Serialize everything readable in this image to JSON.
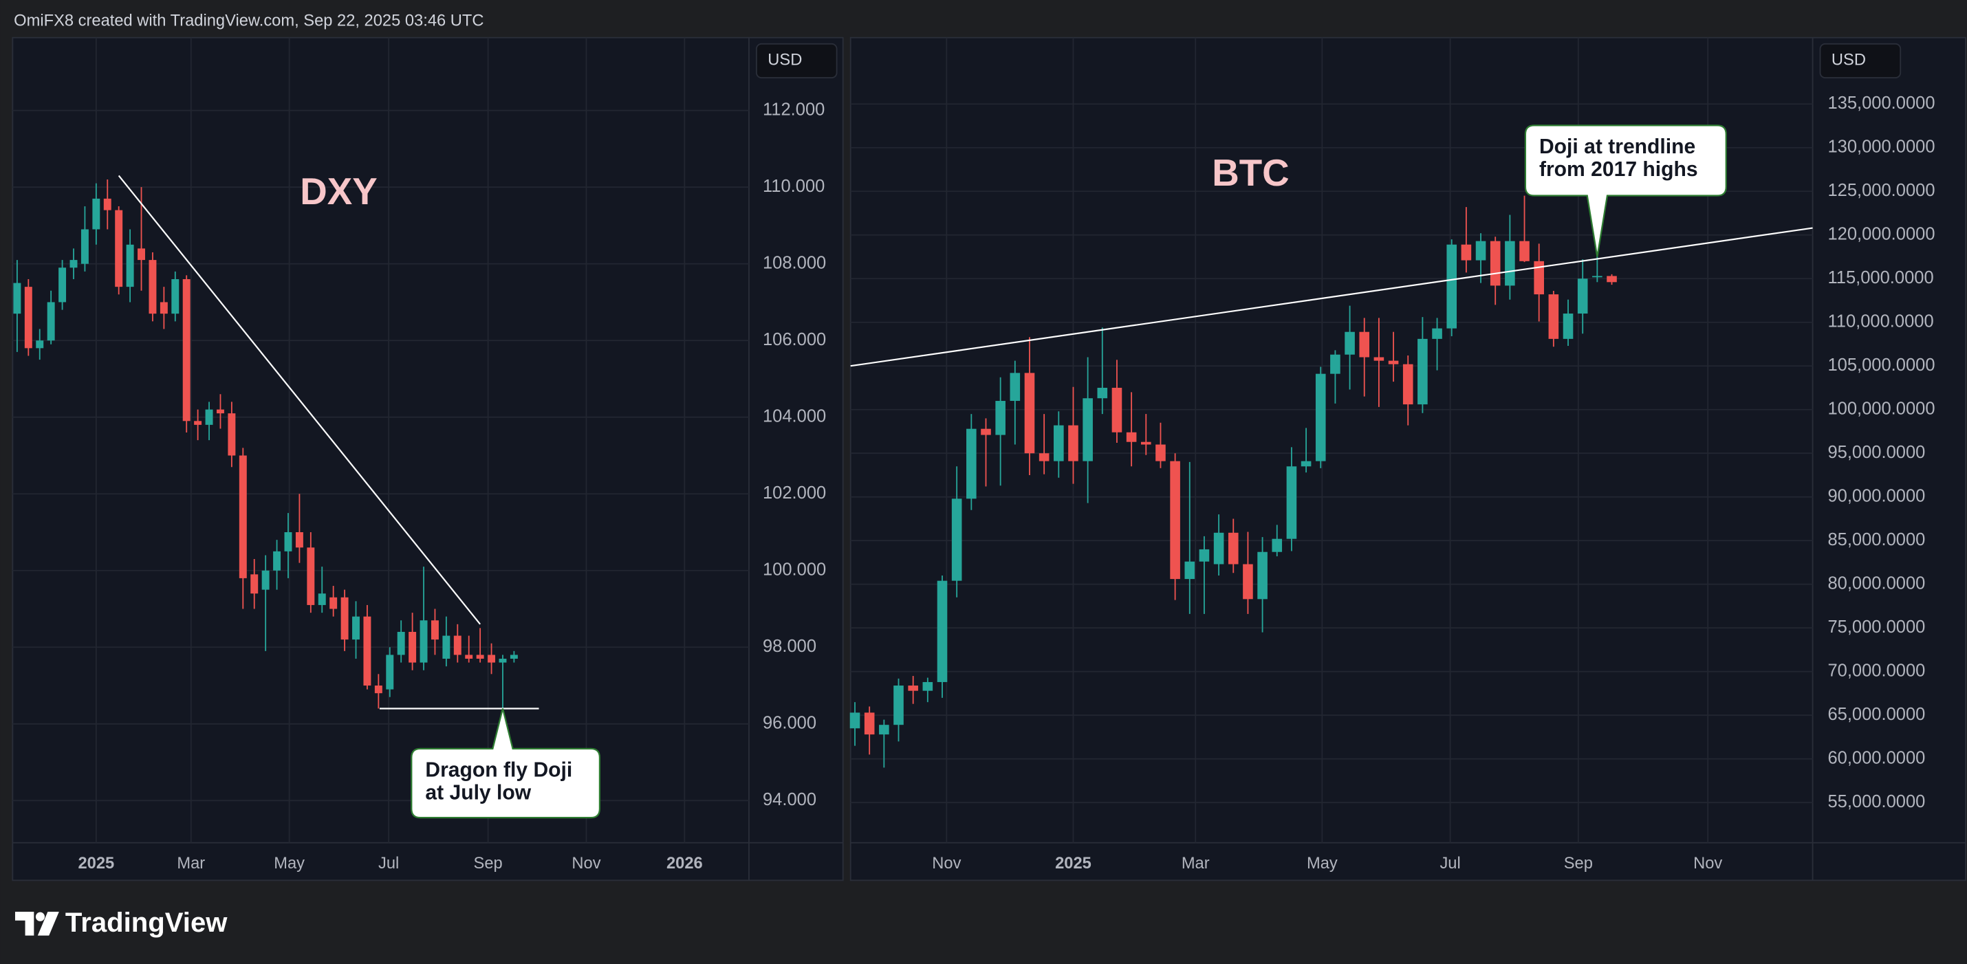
{
  "header": {
    "text": "OmiFX8 created with TradingView.com, Sep 22, 2025 03:46 UTC"
  },
  "footer": {
    "brand": "TradingView"
  },
  "chart_data": [
    {
      "type": "candlestick",
      "title": "DXY",
      "currency": "USD",
      "up_color": "#26a69a",
      "down_color": "#ef5350",
      "line_color": "#ffffff",
      "grid": true,
      "x": [
        -7,
        -6,
        -5,
        -4,
        -3,
        -2,
        -1,
        0,
        1,
        2,
        3,
        4,
        5,
        6,
        7,
        8,
        9,
        10,
        11,
        12,
        13,
        14,
        15,
        16,
        17,
        18,
        19,
        20,
        21,
        22,
        23,
        24,
        25,
        26,
        27,
        28,
        29,
        30,
        31,
        32,
        33,
        34,
        35,
        36,
        37
      ],
      "open": [
        106.7,
        107.4,
        105.8,
        106.0,
        107.0,
        107.9,
        108.0,
        108.9,
        109.7,
        109.4,
        107.4,
        108.4,
        108.1,
        107.0,
        106.7,
        107.6,
        103.9,
        103.8,
        104.2,
        104.1,
        103.0,
        99.9,
        99.5,
        100.0,
        100.5,
        101.0,
        100.6,
        99.1,
        99.3,
        99.3,
        98.2,
        98.8,
        97.0,
        96.9,
        97.8,
        98.4,
        97.6,
        98.7,
        97.7,
        98.3,
        97.8,
        97.8,
        97.8,
        97.6,
        97.7
      ],
      "high": [
        108.1,
        107.6,
        106.3,
        107.3,
        108.1,
        108.4,
        109.5,
        110.1,
        110.2,
        109.5,
        108.9,
        110.0,
        108.3,
        107.4,
        107.8,
        107.7,
        104.2,
        104.4,
        104.6,
        104.4,
        103.2,
        100.3,
        100.4,
        100.8,
        101.5,
        102.0,
        101.0,
        100.1,
        99.6,
        99.5,
        99.2,
        99.1,
        97.3,
        98.0,
        98.7,
        98.9,
        100.1,
        99.0,
        98.8,
        98.6,
        98.3,
        98.5,
        98.1,
        97.8,
        97.9
      ],
      "low": [
        105.7,
        105.6,
        105.5,
        105.9,
        106.8,
        107.6,
        107.8,
        108.5,
        108.9,
        107.2,
        107.0,
        107.3,
        106.5,
        106.3,
        106.5,
        103.6,
        103.4,
        103.4,
        103.7,
        102.7,
        99.0,
        99.0,
        97.9,
        99.5,
        99.8,
        100.2,
        98.9,
        98.9,
        98.8,
        97.9,
        97.7,
        96.9,
        96.4,
        96.7,
        97.6,
        97.4,
        97.4,
        97.8,
        97.5,
        97.6,
        97.6,
        97.6,
        97.3,
        96.4,
        97.6
      ],
      "close": [
        107.5,
        105.8,
        106.0,
        107.0,
        107.9,
        108.1,
        108.9,
        109.7,
        109.4,
        107.4,
        108.5,
        108.1,
        106.7,
        106.7,
        107.6,
        103.9,
        103.8,
        104.2,
        104.1,
        103.0,
        99.8,
        99.4,
        100.0,
        100.5,
        101.0,
        100.6,
        99.1,
        99.4,
        99.0,
        98.2,
        98.8,
        97.0,
        96.8,
        97.8,
        98.4,
        97.6,
        98.7,
        98.2,
        98.3,
        97.8,
        97.7,
        97.7,
        97.6,
        97.7,
        97.8
      ],
      "xlim": [
        -7.4,
        57.8
      ],
      "ylim": [
        92.9,
        113.9
      ],
      "xticks": [
        {
          "value": 0,
          "label": "2025"
        },
        {
          "value": 8.4,
          "label": "Mar"
        },
        {
          "value": 17.1,
          "label": "May"
        },
        {
          "value": 25.9,
          "label": "Jul"
        },
        {
          "value": 34.7,
          "label": "Sep"
        },
        {
          "value": 43.4,
          "label": "Nov"
        },
        {
          "value": 52.1,
          "label": "2026"
        }
      ],
      "yticks": [
        {
          "value": 94,
          "label": "94.000"
        },
        {
          "value": 96,
          "label": "96.000"
        },
        {
          "value": 98,
          "label": "98.000"
        },
        {
          "value": 100,
          "label": "100.000"
        },
        {
          "value": 102,
          "label": "102.000"
        },
        {
          "value": 104,
          "label": "104.000"
        },
        {
          "value": 106,
          "label": "106.000"
        },
        {
          "value": 108,
          "label": "108.000"
        },
        {
          "value": 110,
          "label": "110.000"
        },
        {
          "value": 112,
          "label": "112.000"
        }
      ],
      "trendlines": [
        {
          "x": [
            2,
            34
          ],
          "y": [
            110.3,
            98.6
          ]
        },
        {
          "x": [
            25.1,
            39.2
          ],
          "y": [
            96.4,
            96.4
          ]
        }
      ],
      "annotation": {
        "text": [
          "Dragon fly Doji",
          "at July low"
        ],
        "x": 36,
        "y": 96.4
      }
    },
    {
      "type": "candlestick",
      "title": "BTC",
      "currency": "USD",
      "up_color": "#26a69a",
      "down_color": "#ef5350",
      "line_color": "#ffffff",
      "grid": true,
      "x": [
        -15,
        -14,
        -13,
        -12,
        -11,
        -10,
        -9,
        -8,
        -7,
        -6,
        -5,
        -4,
        -3,
        -2,
        -1,
        0,
        1,
        2,
        3,
        4,
        5,
        6,
        7,
        8,
        9,
        10,
        11,
        12,
        13,
        14,
        15,
        16,
        17,
        18,
        19,
        20,
        21,
        22,
        23,
        24,
        25,
        26,
        27,
        28,
        29,
        30,
        31,
        32,
        33,
        34,
        35,
        36,
        37
      ],
      "open": [
        63500,
        65300,
        62800,
        63900,
        68400,
        67800,
        68800,
        80400,
        89800,
        97800,
        97100,
        101000,
        104200,
        95000,
        94100,
        98200,
        94100,
        101300,
        102500,
        97400,
        96300,
        96000,
        94100,
        80600,
        82600,
        82300,
        85900,
        82300,
        78300,
        83700,
        85200,
        93500,
        94100,
        104100,
        106300,
        108900,
        106000,
        105600,
        105200,
        100600,
        108100,
        109300,
        118900,
        117100,
        119300,
        114200,
        119300,
        117000,
        113200,
        108100,
        111000,
        115200,
        115300
      ],
      "high": [
        66500,
        66000,
        64500,
        69200,
        69500,
        69300,
        81000,
        93500,
        99500,
        99000,
        103700,
        105600,
        108300,
        99500,
        99800,
        102600,
        106000,
        109400,
        105700,
        102000,
        99500,
        98500,
        95000,
        94000,
        85500,
        88000,
        87500,
        86000,
        85400,
        86800,
        95700,
        97900,
        104900,
        106800,
        111900,
        110500,
        110500,
        108900,
        106200,
        110600,
        110500,
        119500,
        123200,
        120200,
        119800,
        122300,
        124500,
        119000,
        113600,
        112600,
        117200,
        117900,
        115500
      ],
      "low": [
        61500,
        60500,
        59000,
        62000,
        66300,
        66500,
        67000,
        78500,
        88500,
        91200,
        91300,
        96000,
        92500,
        92600,
        92200,
        91500,
        89300,
        99500,
        96200,
        93500,
        94800,
        93300,
        78200,
        76600,
        76600,
        81000,
        81300,
        76600,
        74500,
        83200,
        83800,
        92800,
        93300,
        100700,
        102300,
        101500,
        100300,
        103200,
        98200,
        99600,
        104500,
        108400,
        115700,
        114500,
        112000,
        112600,
        116900,
        110100,
        107200,
        107300,
        108700,
        114600,
        114300
      ],
      "close": [
        65300,
        62800,
        63900,
        68400,
        67800,
        68800,
        80400,
        89800,
        97800,
        97100,
        101000,
        104200,
        95000,
        94100,
        98200,
        94100,
        101300,
        102500,
        97400,
        96300,
        96000,
        94100,
        80600,
        82600,
        84000,
        85900,
        82300,
        78300,
        83700,
        85200,
        93500,
        94100,
        104100,
        106300,
        108900,
        106000,
        105600,
        105200,
        100600,
        108100,
        109300,
        118900,
        117100,
        119300,
        114200,
        119300,
        117000,
        113200,
        108100,
        111000,
        115000,
        115300,
        114600
      ],
      "xlim": [
        -15.3,
        50.8
      ],
      "ylim": [
        50400,
        142600
      ],
      "xticks": [
        {
          "value": -8.7,
          "label": "Nov"
        },
        {
          "value": 0,
          "label": "2025"
        },
        {
          "value": 8.4,
          "label": "Mar"
        },
        {
          "value": 17.1,
          "label": "May"
        },
        {
          "value": 25.9,
          "label": "Jul"
        },
        {
          "value": 34.7,
          "label": "Sep"
        },
        {
          "value": 43.6,
          "label": "Nov"
        }
      ],
      "yticks": [
        {
          "value": 55000,
          "label": "55,000.0000"
        },
        {
          "value": 60000,
          "label": "60,000.0000"
        },
        {
          "value": 65000,
          "label": "65,000.0000"
        },
        {
          "value": 70000,
          "label": "70,000.0000"
        },
        {
          "value": 75000,
          "label": "75,000.0000"
        },
        {
          "value": 80000,
          "label": "80,000.0000"
        },
        {
          "value": 85000,
          "label": "85,000.0000"
        },
        {
          "value": 90000,
          "label": "90,000.0000"
        },
        {
          "value": 95000,
          "label": "95,000.0000"
        },
        {
          "value": 100000,
          "label": "100,000.0000"
        },
        {
          "value": 105000,
          "label": "105,000.0000"
        },
        {
          "value": 110000,
          "label": "110,000.0000"
        },
        {
          "value": 115000,
          "label": "115,000.0000"
        },
        {
          "value": 120000,
          "label": "120,000.0000"
        },
        {
          "value": 125000,
          "label": "125,000.0000"
        },
        {
          "value": 130000,
          "label": "130,000.0000"
        },
        {
          "value": 135000,
          "label": "135,000.0000"
        }
      ],
      "trendlines": [
        {
          "x": [
            -15.3,
            50.8
          ],
          "y": [
            105000,
            120800
          ]
        }
      ],
      "annotation": {
        "text": [
          "Doji at trendline",
          "from 2017 highs"
        ],
        "x": 36,
        "y": 117500
      }
    }
  ]
}
